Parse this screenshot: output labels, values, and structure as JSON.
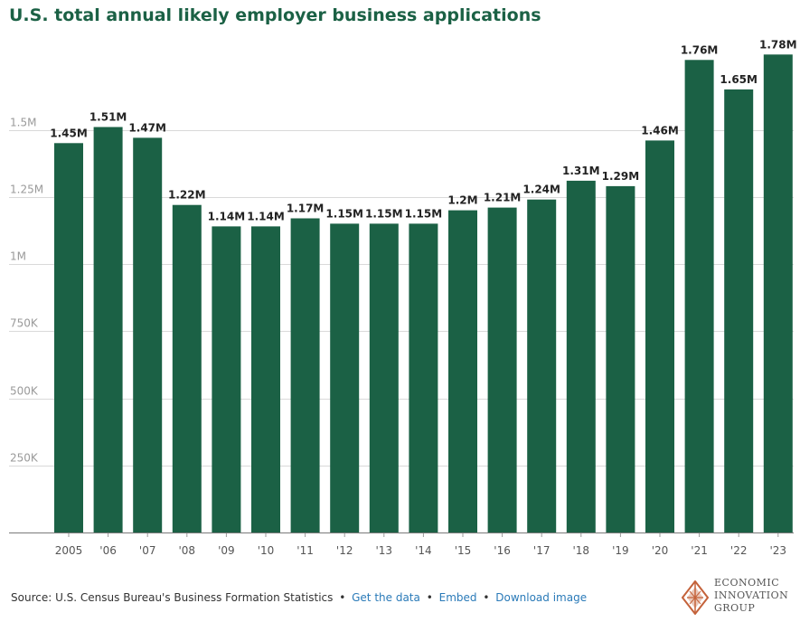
{
  "chart_data": {
    "type": "bar",
    "title": "U.S. total annual likely employer business applications",
    "categories": [
      "2005",
      "'06",
      "'07",
      "'08",
      "'09",
      "'10",
      "'11",
      "'12",
      "'13",
      "'14",
      "'15",
      "'16",
      "'17",
      "'18",
      "'19",
      "'20",
      "'21",
      "'22",
      "'23"
    ],
    "values": [
      1450000,
      1510000,
      1470000,
      1220000,
      1140000,
      1140000,
      1170000,
      1150000,
      1150000,
      1150000,
      1200000,
      1210000,
      1240000,
      1310000,
      1290000,
      1460000,
      1760000,
      1650000,
      1780000
    ],
    "value_labels": [
      "1.45M",
      "1.51M",
      "1.47M",
      "1.22M",
      "1.14M",
      "1.14M",
      "1.17M",
      "1.15M",
      "1.15M",
      "1.15M",
      "1.2M",
      "1.21M",
      "1.24M",
      "1.31M",
      "1.29M",
      "1.46M",
      "1.76M",
      "1.65M",
      "1.78M"
    ],
    "yticks": [
      250000,
      500000,
      750000,
      1000000,
      1250000,
      1500000
    ],
    "ytick_labels": [
      "250K",
      "500K",
      "750K",
      "1M",
      "1.25M",
      "1.5M"
    ],
    "ylim": [
      0,
      1800000
    ],
    "xlabel": "",
    "ylabel": "",
    "grid": true,
    "bar_color": "#1b6145"
  },
  "footer": {
    "source": "Source: U.S. Census Bureau's Business Formation Statistics",
    "sep": "•",
    "get_data": "Get the data",
    "embed": "Embed",
    "download": "Download image"
  },
  "logo": {
    "line1": "ECONOMIC",
    "line2": "INNOVATION",
    "line3": "GROUP"
  },
  "colors": {
    "accent": "#1b6145",
    "link": "#2a7ab8",
    "logo": "#c4623a"
  }
}
